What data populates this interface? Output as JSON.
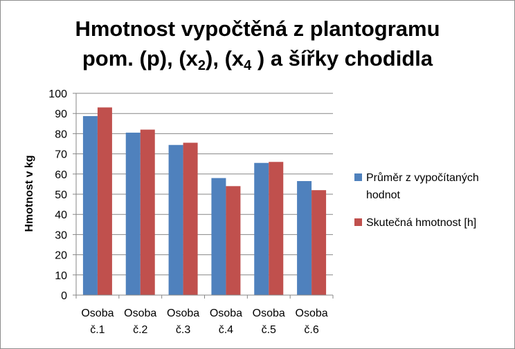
{
  "chart_data": {
    "type": "bar",
    "title": {
      "line1": "Hmotnost vypočtěná z plantogramu",
      "line2_prefix": "pom. (p), (x",
      "sub1": "2",
      "line2_mid": "), (x",
      "sub2": "4",
      "line2_suffix": " ) a šířky chodidla"
    },
    "ylabel": "Hmotnost v kg",
    "ylim": [
      0,
      100
    ],
    "ytick_step": 10,
    "grid": true,
    "legend_position": "right",
    "categories": [
      [
        "Osoba",
        "č.1"
      ],
      [
        "Osoba",
        "č.2"
      ],
      [
        "Osoba",
        "č.3"
      ],
      [
        "Osoba",
        "č.4"
      ],
      [
        "Osoba",
        "č.5"
      ],
      [
        "Osoba",
        "č.6"
      ]
    ],
    "series": [
      {
        "name_lines": [
          "Průměr z vypočítaných",
          "hodnot"
        ],
        "color": "#4f81bd",
        "values": [
          88.7,
          80.5,
          74.4,
          58.0,
          65.5,
          56.5
        ]
      },
      {
        "name_lines": [
          "Skutečná hmotnost [h]"
        ],
        "color": "#c0504d",
        "values": [
          93.0,
          82.0,
          75.5,
          54.0,
          66.0,
          52.0
        ]
      }
    ]
  }
}
